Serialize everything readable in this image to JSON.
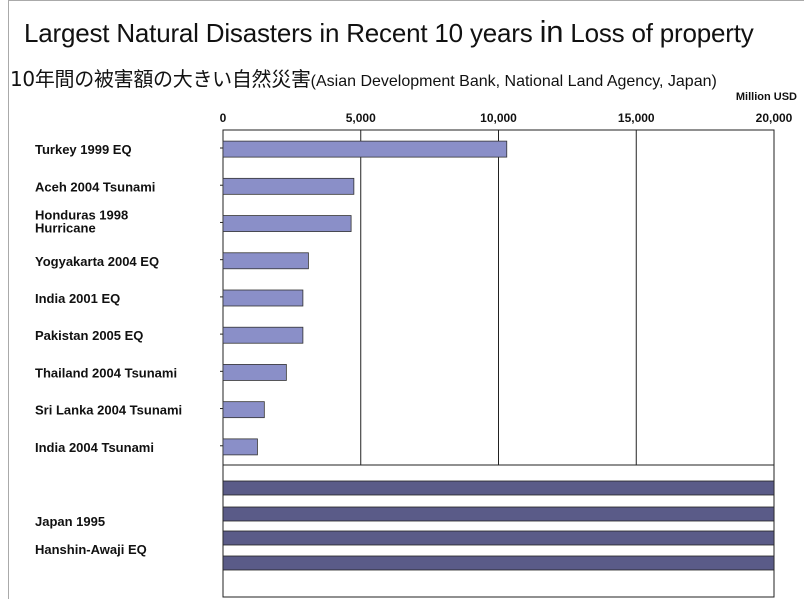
{
  "header": {
    "title_part1": "Largest Natural Disasters in Recent 10 years ",
    "title_part2": "in",
    "title_part3": " Loss of property",
    "subtitle_jp": "10年間の被害額の大きい自然災害",
    "subtitle_src": "(Asian Development Bank, National Land Agency, Japan)",
    "unit": "Million USD"
  },
  "chart_data": {
    "type": "bar",
    "orientation": "horizontal",
    "title": "Largest Natural Disasters in Recent 10 years in Loss of property",
    "subtitle": "10年間の被害額の大きい自然災害(Asian Development Bank, National Land Agency, Japan)",
    "xlabel": "Million USD",
    "ylabel": "",
    "xlim": [
      0,
      20000
    ],
    "x_ticks": [
      "0",
      "5,000",
      "10,000",
      "15,000",
      "20,000"
    ],
    "grid": true,
    "bar_color": "#8a8fc8",
    "overflow_bar_color": "#5a5b88",
    "categories": [
      "Turkey   1999  EQ",
      "Aceh  2004 Tsunami",
      "Honduras 1998 Hurricane",
      "Yogyakarta  2004 EQ",
      "India   2001 EQ",
      "Pakistan 2005  EQ",
      "Thailand 2004 Tsunami",
      "Sri Lanka 2004  Tsunami",
      "India 2004 Tsunami"
    ],
    "values": [
      10300,
      4750,
      4650,
      3100,
      2900,
      2900,
      2300,
      1500,
      1250
    ],
    "overflow_category": [
      "Japan 1995",
      "Hanshin-Awaji EQ"
    ],
    "overflow_note": "bars extend beyond 20,000 (axis maximum)"
  }
}
